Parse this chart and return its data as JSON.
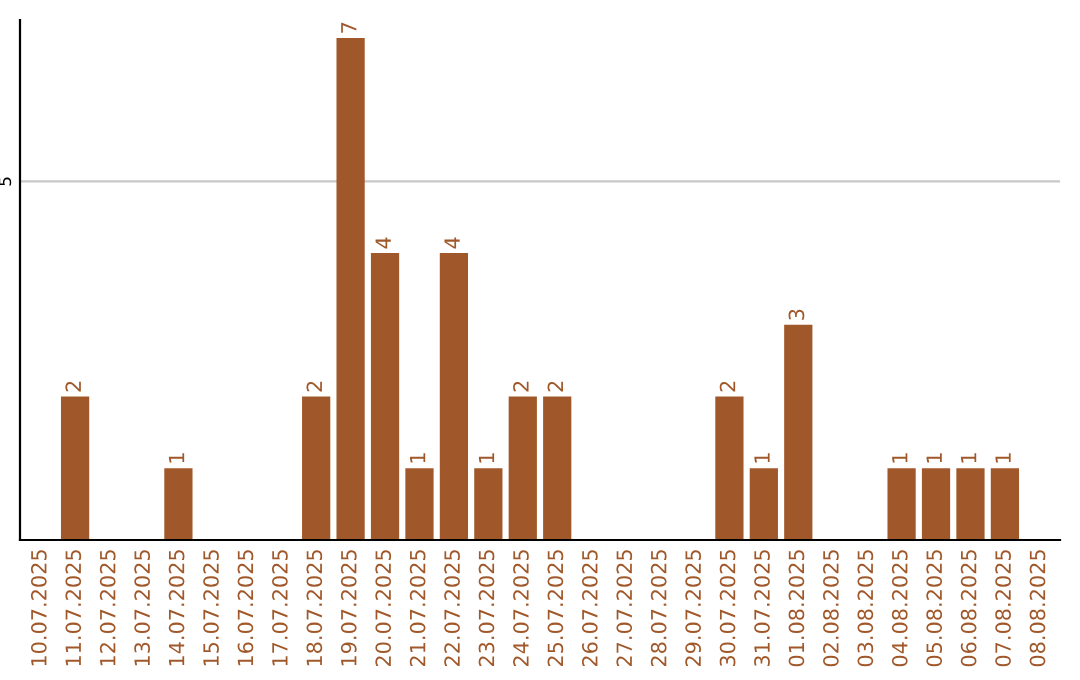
{
  "chart_data": {
    "type": "bar",
    "categories": [
      "10.07.2025",
      "11.07.2025",
      "12.07.2025",
      "13.07.2025",
      "14.07.2025",
      "15.07.2025",
      "16.07.2025",
      "17.07.2025",
      "18.07.2025",
      "19.07.2025",
      "20.07.2025",
      "21.07.2025",
      "22.07.2025",
      "23.07.2025",
      "24.07.2025",
      "25.07.2025",
      "26.07.2025",
      "27.07.2025",
      "28.07.2025",
      "29.07.2025",
      "30.07.2025",
      "31.07.2025",
      "01.08.2025",
      "02.08.2025",
      "03.08.2025",
      "04.08.2025",
      "05.08.2025",
      "06.08.2025",
      "07.08.2025",
      "08.08.2025"
    ],
    "values": [
      0,
      2,
      0,
      0,
      1,
      0,
      0,
      0,
      2,
      7,
      4,
      1,
      4,
      1,
      2,
      2,
      0,
      0,
      0,
      0,
      2,
      1,
      3,
      0,
      0,
      1,
      1,
      1,
      1,
      0
    ],
    "value_labels": [
      null,
      "2",
      null,
      null,
      "1",
      null,
      null,
      null,
      "2",
      "7",
      "4",
      "1",
      "4",
      "1",
      "2",
      "2",
      null,
      null,
      null,
      null,
      "2",
      "1",
      "3",
      null,
      null,
      "1",
      "1",
      "1",
      "1",
      null
    ],
    "color": "#a0582a",
    "ylim": [
      0,
      7.25
    ],
    "yticks": [
      5
    ],
    "grid": "y",
    "legend": false
  }
}
